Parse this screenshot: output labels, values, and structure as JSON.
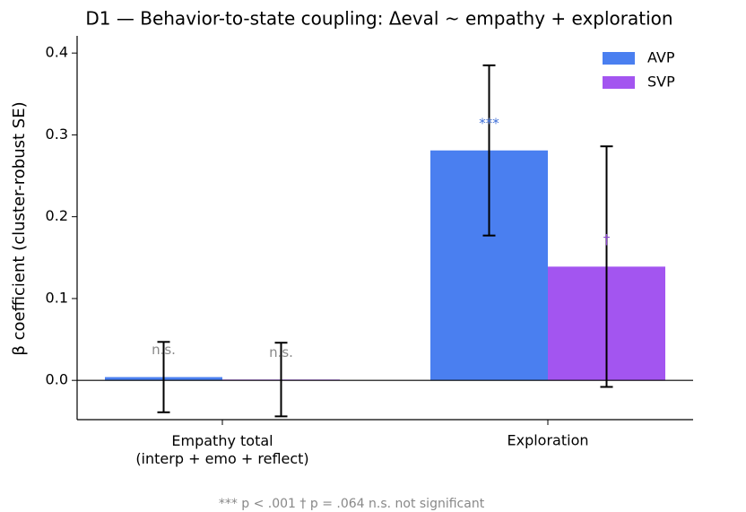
{
  "chart_data": {
    "type": "bar",
    "title": "D1 — Behavior-to-state coupling: Δeval ~ empathy + exploration",
    "ylabel": "β coefficient (cluster-robust SE)",
    "categories": [
      "Empathy total\n(interp + emo + reflect)",
      "Exploration"
    ],
    "series": [
      {
        "name": "AVP",
        "color": "#4a7ff0",
        "values": [
          0.004,
          0.281
        ],
        "errors": [
          0.043,
          0.104
        ]
      },
      {
        "name": "SVP",
        "color": "#a355f0",
        "values": [
          0.001,
          0.139
        ],
        "errors": [
          0.045,
          0.147
        ]
      }
    ],
    "ylim": [
      -0.048,
      0.421
    ],
    "yticks": [
      {
        "value": 0,
        "label": "0.0"
      },
      0.1,
      0.2,
      0.3,
      0.4
    ],
    "annotations": [
      {
        "text": "n.s.",
        "series": 0,
        "category": 0,
        "color": "#888888"
      },
      {
        "text": "n.s.",
        "series": 1,
        "category": 0,
        "color": "#888888"
      },
      {
        "text": "***",
        "series": 0,
        "category": 1,
        "color": "#3f6fd8"
      },
      {
        "text": "†",
        "series": 1,
        "category": 1,
        "color": "#8a45d0"
      }
    ],
    "legend": "upper right",
    "footnote": "*** p < .001   † p = .064   n.s. not significant"
  }
}
